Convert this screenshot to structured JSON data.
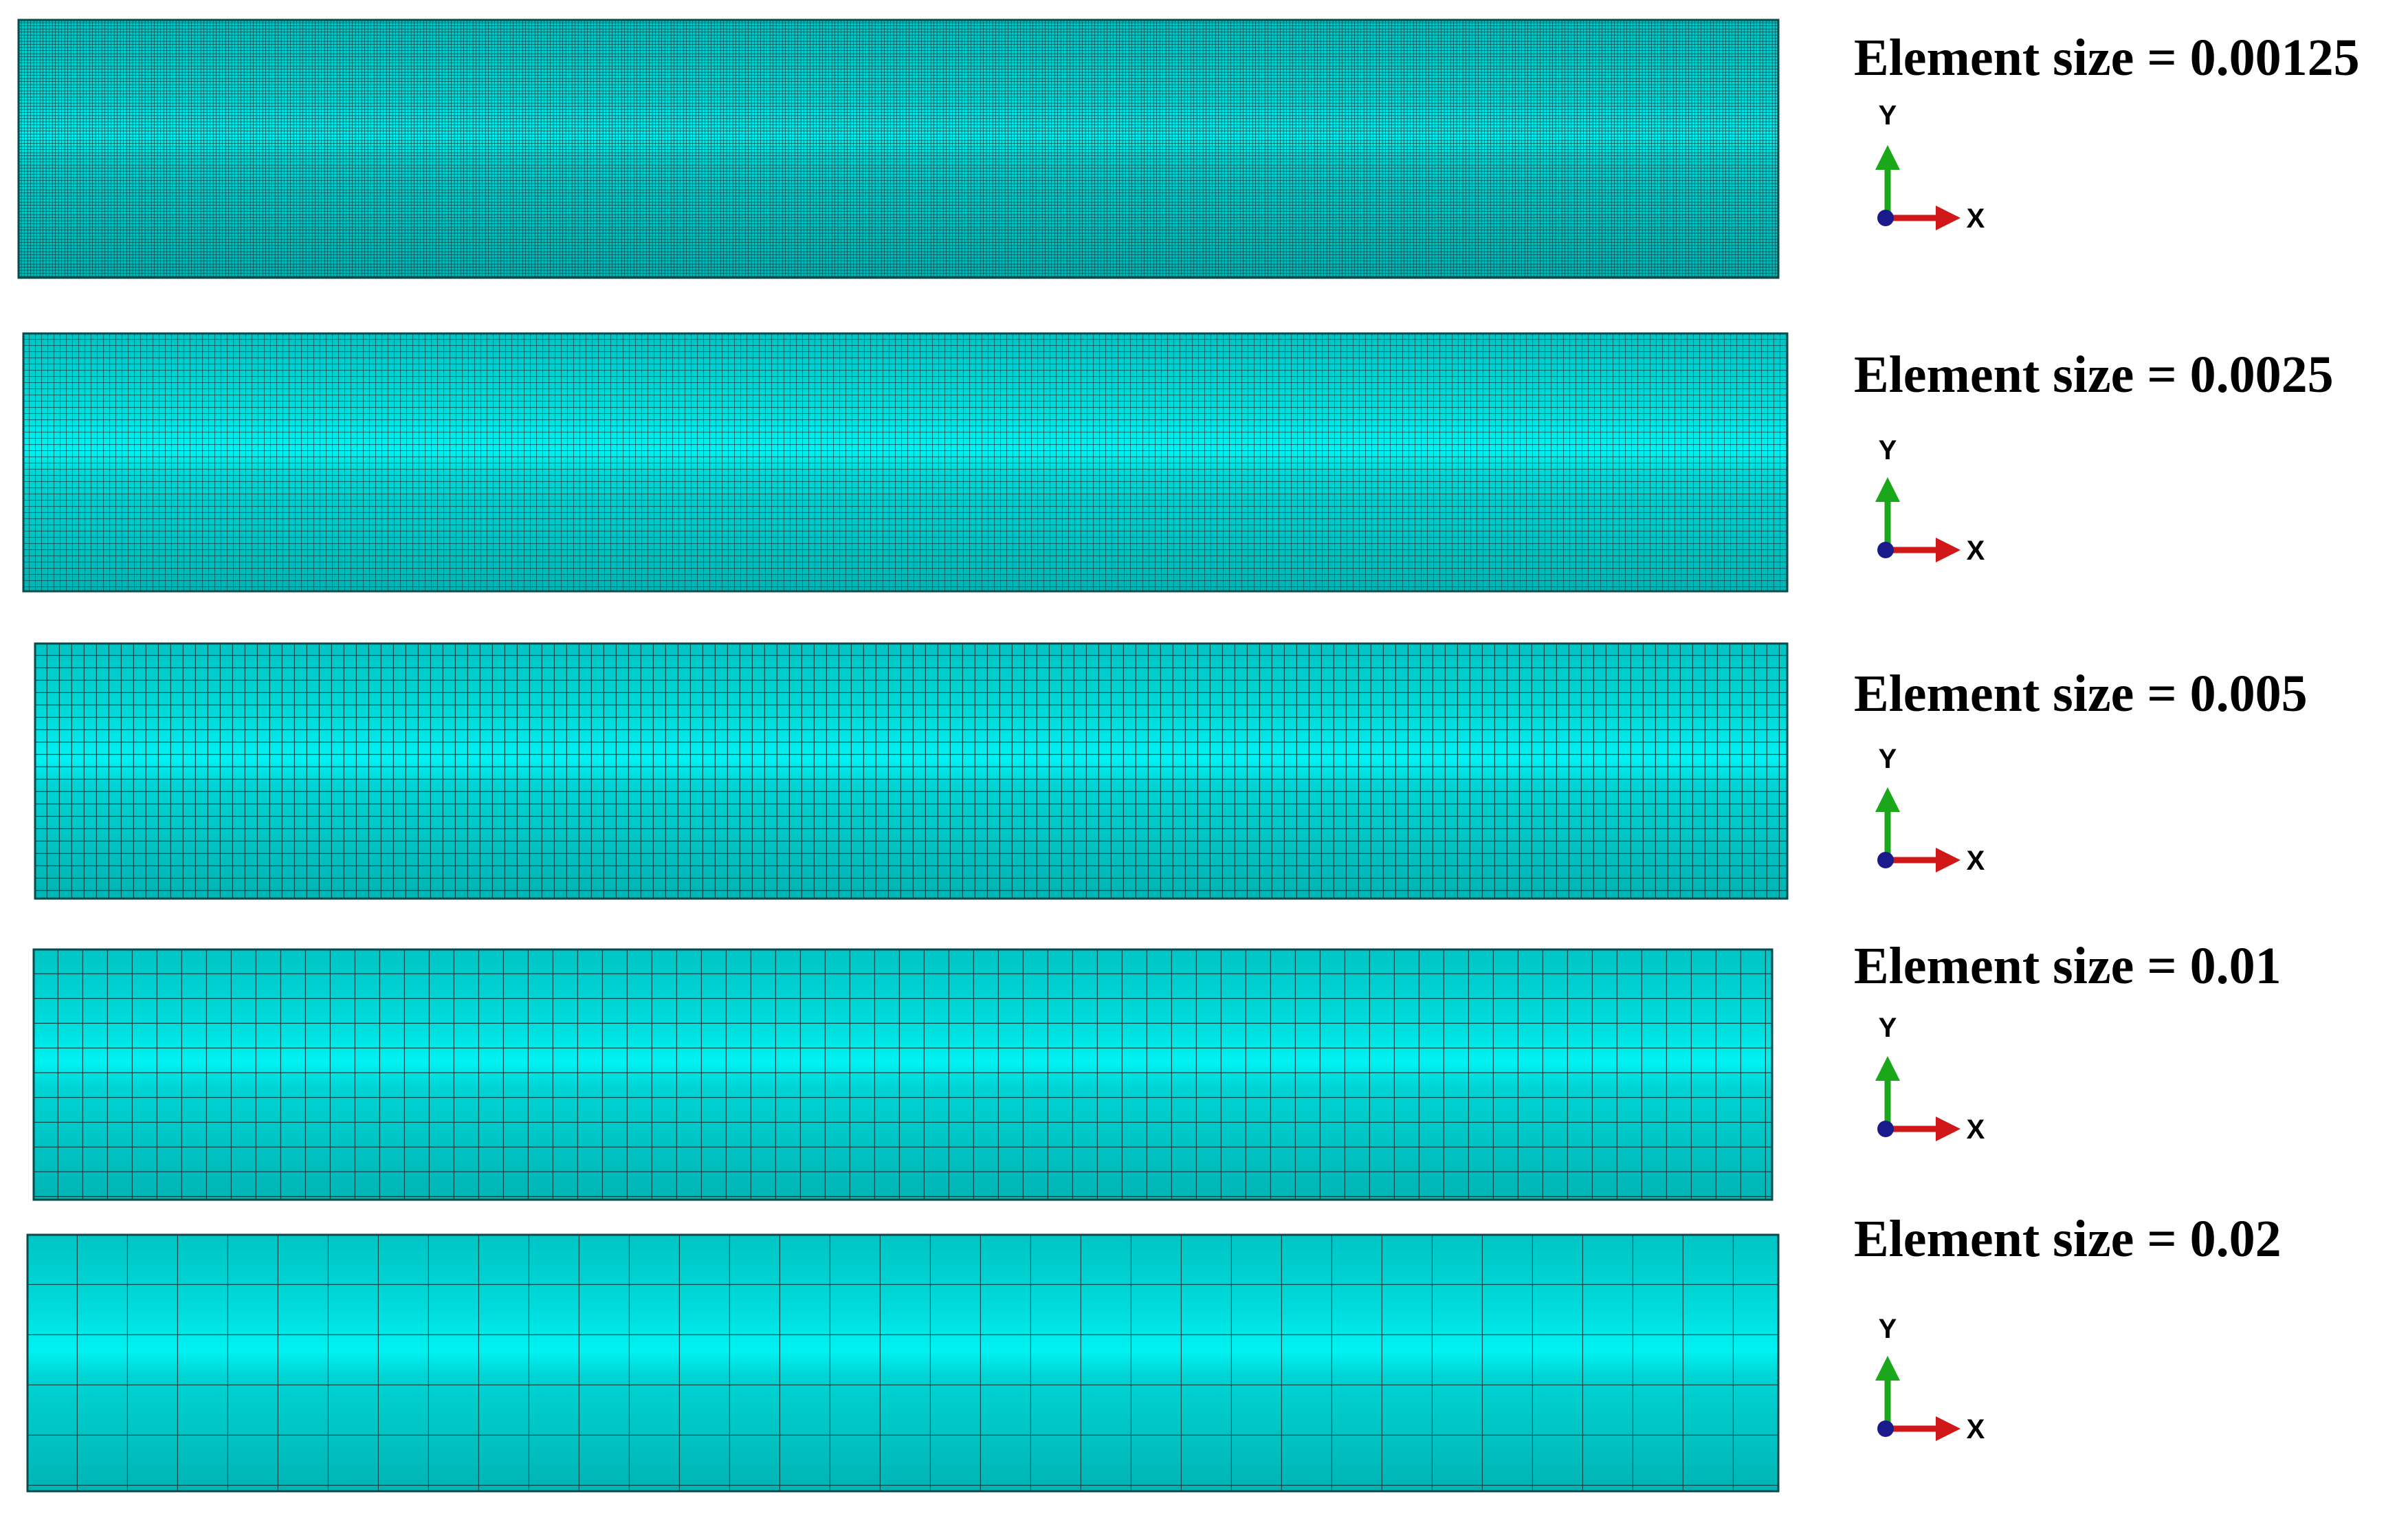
{
  "axes": {
    "y": "Y",
    "x": "X"
  },
  "panels": [
    {
      "label": "Element size = 0.00125"
    },
    {
      "label": "Element size = 0.0025"
    },
    {
      "label": "Element size = 0.005"
    },
    {
      "label": "Element size = 0.01"
    },
    {
      "label": "Element size = 0.02"
    }
  ]
}
